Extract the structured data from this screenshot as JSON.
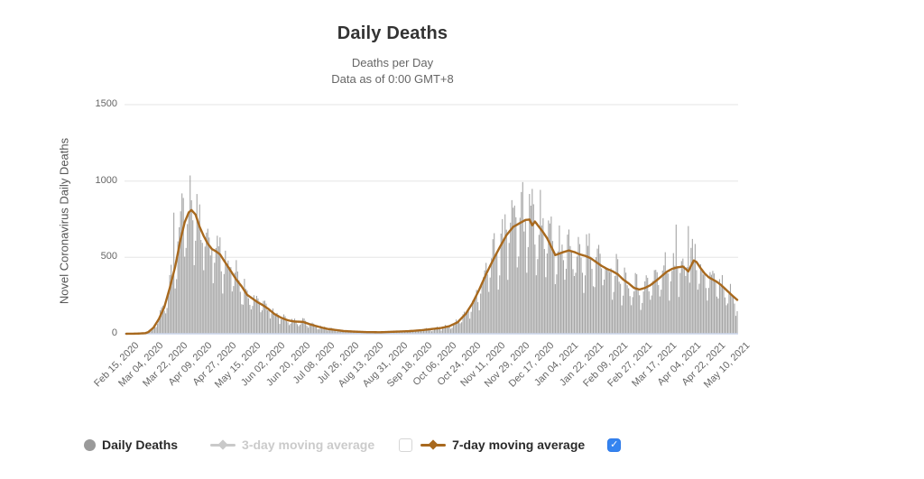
{
  "header": {
    "title": "Daily Deaths",
    "subtitle_line1": "Deaths per Day",
    "subtitle_line2": "Data as of 0:00 GMT+8"
  },
  "legend": {
    "items": [
      {
        "label": "Daily Deaths",
        "marker": "circle-icon",
        "color": "#9a9a9a",
        "enabled": true
      },
      {
        "label": "3-day moving average",
        "marker": "line-diamond-icon",
        "color": "#c9c9c9",
        "enabled": false,
        "checkbox": "unchecked"
      },
      {
        "label": "7-day moving average",
        "marker": "line-diamond-icon",
        "color": "#a8691e",
        "enabled": true,
        "checkbox": "checked"
      }
    ],
    "checkbox_checked_color": "#3484f0"
  },
  "chart_data": {
    "type": "bar",
    "title": "Daily Deaths",
    "subtitle": [
      "Deaths per Day",
      "Data as of 0:00 GMT+8"
    ],
    "xlabel": "",
    "ylabel": "Novel Coronavirus Daily Deaths",
    "ylim": [
      0,
      1500
    ],
    "y_ticks": [
      0,
      500,
      1000,
      1500
    ],
    "grid": true,
    "grid_color": "#e6e6e6",
    "axis_line_color": "#ccd6eb",
    "label_color": "#666666",
    "legend_position": "bottom",
    "x_start_date": "2020-02-15",
    "x_end_date": "2021-05-10",
    "x_tick_interval_days": 18,
    "days_total": 450,
    "start_weekday_index": 6,
    "x_tick_labels": [
      "Feb 15, 2020",
      "Mar 04, 2020",
      "Mar 22, 2020",
      "Apr 09, 2020",
      "Apr 27, 2020",
      "May 15, 2020",
      "Jun 02, 2020",
      "Jun 20, 2020",
      "Jul 08, 2020",
      "Jul 26, 2020",
      "Aug 13, 2020",
      "Aug 31, 2020",
      "Sep 18, 2020",
      "Oct 06, 2020",
      "Oct 24, 2020",
      "Nov 11, 2020",
      "Nov 29, 2020",
      "Dec 17, 2020",
      "Jan 04, 2021",
      "Jan 22, 2021",
      "Feb 09, 2021",
      "Feb 27, 2021",
      "Mar 17, 2021",
      "Apr 04, 2021",
      "Apr 22, 2021",
      "May 10, 2021"
    ],
    "series": [
      {
        "name": "Daily Deaths",
        "type": "bar",
        "color": "#a5a5a5",
        "visible": true,
        "derivation": "bars oscillate weekly around the 7-day average",
        "weekday_factors": [
          0.62,
          0.78,
          1.12,
          1.18,
          1.15,
          1.08,
          0.92
        ],
        "noise_amplitude": 0.18,
        "noise_seed": 11,
        "outliers": [
          [
            35,
            793
          ],
          [
            41,
            919
          ],
          [
            42,
            889
          ],
          [
            292,
            993
          ],
          [
            325,
            649
          ],
          [
            405,
            715
          ],
          [
            414,
            705
          ]
        ]
      },
      {
        "name": "3-day moving average",
        "type": "line",
        "color": "#cccccc",
        "visible": false
      },
      {
        "name": "7-day moving average",
        "type": "line",
        "color": "#a8691e",
        "visible": true,
        "control_points": [
          [
            0,
            0
          ],
          [
            8,
            1
          ],
          [
            14,
            4
          ],
          [
            16,
            10
          ],
          [
            20,
            40
          ],
          [
            24,
            97
          ],
          [
            28,
            175
          ],
          [
            32,
            300
          ],
          [
            36,
            440
          ],
          [
            40,
            620
          ],
          [
            43,
            730
          ],
          [
            46,
            795
          ],
          [
            48,
            810
          ],
          [
            51,
            780
          ],
          [
            54,
            700
          ],
          [
            57,
            640
          ],
          [
            60,
            590
          ],
          [
            63,
            555
          ],
          [
            66,
            540
          ],
          [
            69,
            520
          ],
          [
            73,
            465
          ],
          [
            77,
            410
          ],
          [
            81,
            355
          ],
          [
            85,
            310
          ],
          [
            89,
            255
          ],
          [
            93,
            230
          ],
          [
            97,
            205
          ],
          [
            101,
            185
          ],
          [
            105,
            160
          ],
          [
            109,
            130
          ],
          [
            114,
            105
          ],
          [
            119,
            88
          ],
          [
            124,
            80
          ],
          [
            130,
            78
          ],
          [
            136,
            60
          ],
          [
            142,
            45
          ],
          [
            148,
            32
          ],
          [
            154,
            25
          ],
          [
            160,
            18
          ],
          [
            168,
            14
          ],
          [
            177,
            11
          ],
          [
            187,
            10
          ],
          [
            199,
            14
          ],
          [
            208,
            17
          ],
          [
            218,
            24
          ],
          [
            226,
            32
          ],
          [
            232,
            38
          ],
          [
            238,
            50
          ],
          [
            244,
            75
          ],
          [
            250,
            130
          ],
          [
            255,
            200
          ],
          [
            260,
            290
          ],
          [
            265,
            390
          ],
          [
            270,
            480
          ],
          [
            275,
            565
          ],
          [
            280,
            645
          ],
          [
            285,
            700
          ],
          [
            290,
            725
          ],
          [
            294,
            745
          ],
          [
            297,
            748
          ],
          [
            299,
            710
          ],
          [
            301,
            735
          ],
          [
            304,
            700
          ],
          [
            307,
            665
          ],
          [
            310,
            625
          ],
          [
            313,
            570
          ],
          [
            316,
            515
          ],
          [
            319,
            525
          ],
          [
            322,
            535
          ],
          [
            326,
            545
          ],
          [
            330,
            535
          ],
          [
            334,
            520
          ],
          [
            338,
            510
          ],
          [
            342,
            495
          ],
          [
            346,
            470
          ],
          [
            350,
            445
          ],
          [
            354,
            425
          ],
          [
            358,
            410
          ],
          [
            362,
            390
          ],
          [
            366,
            355
          ],
          [
            370,
            330
          ],
          [
            374,
            300
          ],
          [
            378,
            290
          ],
          [
            382,
            300
          ],
          [
            386,
            318
          ],
          [
            390,
            345
          ],
          [
            394,
            375
          ],
          [
            398,
            405
          ],
          [
            402,
            425
          ],
          [
            406,
            435
          ],
          [
            410,
            440
          ],
          [
            412,
            425
          ],
          [
            414,
            408
          ],
          [
            416,
            445
          ],
          [
            418,
            480
          ],
          [
            420,
            470
          ],
          [
            423,
            430
          ],
          [
            426,
            395
          ],
          [
            429,
            370
          ],
          [
            432,
            355
          ],
          [
            435,
            340
          ],
          [
            438,
            320
          ],
          [
            441,
            295
          ],
          [
            444,
            270
          ],
          [
            447,
            245
          ],
          [
            450,
            222
          ]
        ]
      }
    ]
  }
}
